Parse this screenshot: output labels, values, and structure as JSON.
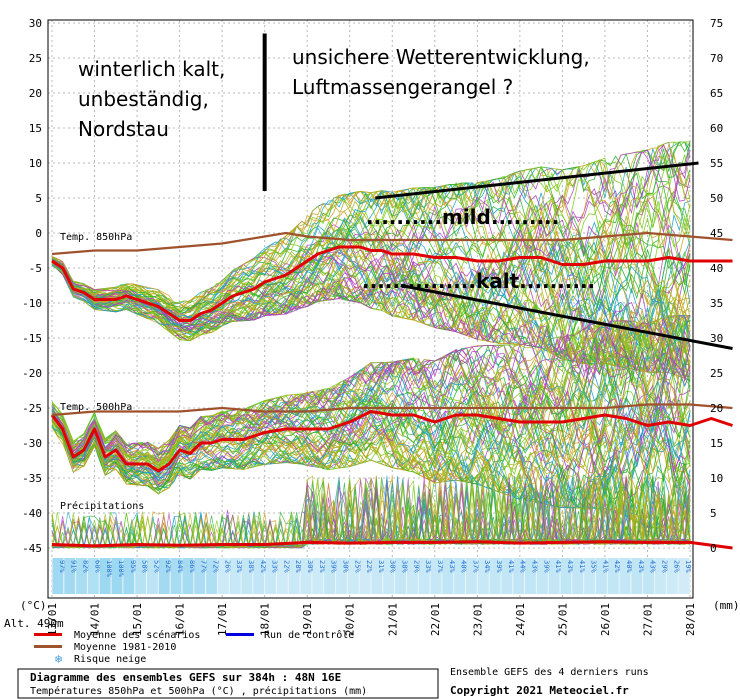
{
  "chart_data": {
    "type": "line",
    "title": "Diagramme des ensembles GEFS sur 384h : 48N 16E",
    "subtitle": "Températures 850hPa et 500hPa (°C) , précipitations (mm)",
    "source": "Ensemble GEFS des 4 derniers runs",
    "copyright": "Copyright 2021 Meteociel.fr",
    "y_left_label": "(°C)",
    "y_right_label": "(mm)",
    "altitude": "Alt. 490m",
    "ylim_left": [
      -45,
      30
    ],
    "ylim_right": [
      0,
      75
    ],
    "y_ticks_left": [
      "30",
      "25",
      "20",
      "15",
      "10",
      "5",
      "0",
      "-5",
      "-10",
      "-15",
      "-20",
      "-25",
      "-30",
      "-35",
      "-40",
      "-45"
    ],
    "y_ticks_right": [
      "75",
      "70",
      "65",
      "60",
      "55",
      "50",
      "45",
      "40",
      "35",
      "30",
      "25",
      "20",
      "15",
      "10",
      "5",
      "0"
    ],
    "x_dates": [
      "13/01",
      "14/01",
      "15/01",
      "16/01",
      "17/01",
      "18/01",
      "19/01",
      "20/01",
      "21/01",
      "22/01",
      "23/01",
      "24/01",
      "25/01",
      "26/01",
      "27/01",
      "28/01"
    ],
    "panel_labels": {
      "t850": "Temp. 850hPa",
      "t500": "Temp. 500hPa",
      "precip": "Précipitations"
    },
    "legend": [
      {
        "label": "Moyenne des scénarios",
        "color": "#e00000"
      },
      {
        "label": "Run de contrôle",
        "color": "#0000e0"
      },
      {
        "label": "Moyenne 1981-2010",
        "color": "#a0522d"
      },
      {
        "label": "Risque neige",
        "color": "#4aa0e0"
      }
    ],
    "snow_risk_pct": [
      "97%",
      "91%",
      "82%",
      "68%",
      "100%",
      "100%",
      "95%",
      "58%",
      "52%",
      "92%",
      "84%",
      "86%",
      "77%",
      "72%",
      "26%",
      "33%",
      "38%",
      "42%",
      "33%",
      "22%",
      "28%",
      "30%",
      "23%",
      "39%",
      "30%",
      "25%",
      "22%",
      "31%",
      "30%",
      "38%",
      "29%",
      "33%",
      "37%",
      "43%",
      "40%",
      "37%",
      "34%",
      "39%",
      "41%",
      "44%",
      "43%",
      "39%",
      "41%",
      "43%",
      "41%",
      "35%",
      "41%",
      "42%",
      "40%",
      "43%",
      "43%",
      "29%",
      "26%",
      "19%"
    ],
    "series": [
      {
        "name": "Moyenne des scénarios",
        "level": "850hPa",
        "x": [
          0,
          0.25,
          0.5,
          0.75,
          1,
          1.25,
          1.5,
          1.75,
          2,
          2.25,
          2.5,
          2.75,
          3,
          3.25,
          3.5,
          3.75,
          4,
          4.25,
          4.5,
          4.75,
          5,
          5.25,
          5.5,
          5.75,
          6,
          6.25,
          6.5,
          6.75,
          7,
          7.25,
          7.5,
          7.75,
          8,
          8.5,
          9,
          9.5,
          10,
          10.5,
          11,
          11.5,
          12,
          12.5,
          13,
          13.5,
          14,
          14.5,
          15,
          15.5,
          16
        ],
        "values": [
          -4,
          -5,
          -8,
          -8.5,
          -9.5,
          -9.5,
          -9.5,
          -9,
          -9.5,
          -10,
          -10.5,
          -11.5,
          -12.5,
          -12.5,
          -11.5,
          -11,
          -10,
          -9,
          -8.5,
          -8,
          -7,
          -6.5,
          -6,
          -5,
          -4,
          -3,
          -2.5,
          -2,
          -2,
          -2,
          -2.5,
          -2.5,
          -3,
          -3,
          -3.5,
          -3.5,
          -4,
          -4,
          -3.5,
          -3.5,
          -4.5,
          -4.5,
          -4,
          -4,
          -4,
          -3.5,
          -4,
          -4,
          -4
        ]
      },
      {
        "name": "Moyenne des scénarios",
        "level": "500hPa",
        "x": [
          0,
          0.25,
          0.5,
          0.75,
          1,
          1.25,
          1.5,
          1.75,
          2,
          2.25,
          2.5,
          2.75,
          3,
          3.25,
          3.5,
          3.75,
          4,
          4.5,
          5,
          5.5,
          6,
          6.5,
          7,
          7.5,
          8,
          8.5,
          9,
          9.5,
          10,
          10.5,
          11,
          11.5,
          12,
          12.5,
          13,
          13.5,
          14,
          14.5,
          15,
          15.5,
          16
        ],
        "values": [
          -26,
          -28,
          -32,
          -31,
          -28,
          -32,
          -31,
          -33,
          -33,
          -33,
          -34,
          -33,
          -31,
          -31.5,
          -30,
          -30,
          -29.5,
          -29.5,
          -28.5,
          -28,
          -28,
          -28,
          -27,
          -25.5,
          -26,
          -26,
          -27,
          -26,
          -26,
          -26.5,
          -27,
          -27,
          -27,
          -26.5,
          -26,
          -26.5,
          -27.5,
          -27,
          -27.5,
          -26.5,
          -27.5
        ]
      },
      {
        "name": "Moyenne 1981-2010",
        "level": "850hPa",
        "x": [
          0,
          1,
          2,
          3,
          4,
          5,
          5.5,
          6,
          7,
          8,
          9,
          10,
          11,
          12,
          13,
          14,
          15,
          16
        ],
        "values": [
          -3,
          -2.5,
          -2.5,
          -2,
          -1.5,
          -0.5,
          0,
          -0.5,
          -1,
          -1,
          -1,
          -1,
          -1,
          -1,
          -0.5,
          0,
          -0.5,
          -1
        ]
      },
      {
        "name": "Moyenne 1981-2010",
        "level": "500hPa",
        "x": [
          0,
          1,
          2,
          3,
          4,
          5,
          6,
          7,
          8,
          9,
          10,
          11,
          12,
          13,
          14,
          15,
          16
        ],
        "values": [
          -26,
          -25.5,
          -25.5,
          -25.5,
          -25,
          -25.5,
          -25.5,
          -25,
          -25,
          -25,
          -25,
          -25,
          -25,
          -25,
          -24.5,
          -24.5,
          -25
        ]
      },
      {
        "name": "Moyenne des scénarios",
        "level": "Précipitations",
        "x": [
          0,
          1,
          2,
          3,
          4,
          5,
          6,
          7,
          8,
          9,
          10,
          11,
          12,
          13,
          14,
          15,
          16
        ],
        "values": [
          -44.5,
          -44.7,
          -44.5,
          -44.6,
          -44.5,
          -44.5,
          -44.2,
          -44.3,
          -44.2,
          -44.2,
          -44.1,
          -44.3,
          -44.2,
          -44.1,
          -44.2,
          -44.2,
          -45
        ]
      }
    ],
    "annotations": {
      "text_winter": [
        "winterlich kalt,",
        "unbeständig,",
        "Nordstau"
      ],
      "text_unsure": [
        "unsichere Wetterentwicklung,",
        "Luftmassengerangel ?"
      ],
      "text_mild": "..........mild.........",
      "text_kalt": "...............kalt..........",
      "trend_upper": {
        "x": [
          7.6,
          15.2
        ],
        "values": [
          5,
          10
        ]
      },
      "trend_lower": {
        "x": [
          8.2,
          16.0
        ],
        "values": [
          -7.5,
          -16.5
        ]
      },
      "divider": {
        "x": [
          5.0,
          5.0
        ],
        "values": [
          28.5,
          6
        ]
      }
    }
  },
  "colors": {
    "ensemble": [
      "#2bb02b",
      "#7acb1a",
      "#b0b020",
      "#b040c0",
      "#20a0c8",
      "#d0a020"
    ],
    "mean": "#e00000",
    "climate": "#a0522d",
    "control": "#0000e0",
    "snow": "#4aa0e0"
  }
}
